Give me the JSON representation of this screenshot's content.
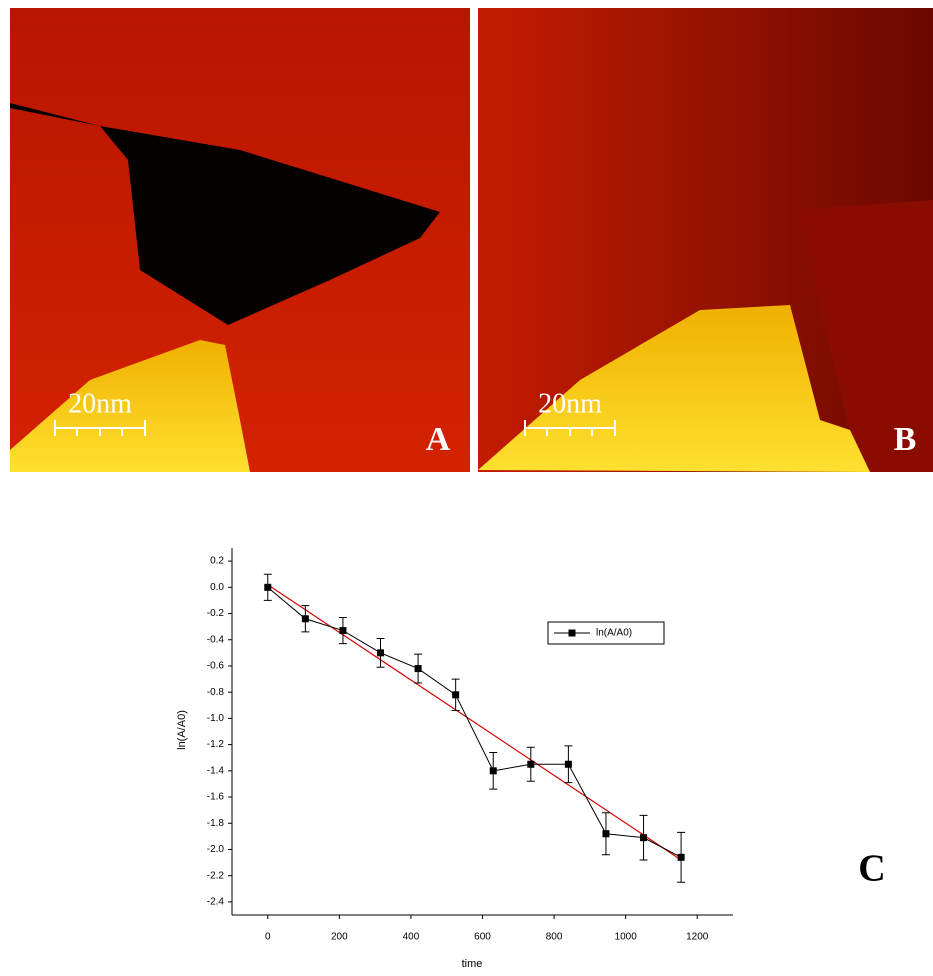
{
  "panels": [
    {
      "label": "A",
      "scale_bar": "20nm"
    },
    {
      "label": "B",
      "scale_bar": "20nm"
    }
  ],
  "chart_label": "C",
  "chart_data": {
    "type": "line",
    "x_label": "time",
    "y_label": "ln(A/A0)",
    "x": [
      0,
      105,
      210,
      315,
      420,
      525,
      630,
      735,
      840,
      945,
      1050,
      1155
    ],
    "series": [
      {
        "name": "ln(A/A0)",
        "color": "#000000",
        "values": [
          0.0,
          -0.24,
          -0.33,
          -0.5,
          -0.62,
          -0.82,
          -1.4,
          -1.35,
          -1.35,
          -1.88,
          -1.91,
          -2.06
        ],
        "errors": [
          0.1,
          0.1,
          0.1,
          0.11,
          0.11,
          0.12,
          0.14,
          0.13,
          0.14,
          0.16,
          0.17,
          0.19
        ]
      }
    ],
    "fit_line": {
      "x": [
        0,
        1155
      ],
      "values": [
        0.02,
        -2.08
      ],
      "color": "#dd0000"
    },
    "xlim": [
      -100,
      1300
    ],
    "xticks": [
      0,
      200,
      400,
      600,
      800,
      1000,
      1200
    ],
    "ylim": [
      -2.5,
      0.3
    ],
    "yticks": [
      0.2,
      {
        "value": 0,
        "label": "0.0"
      },
      -0.2,
      -0.4,
      -0.6,
      -0.8,
      {
        "value": -1,
        "label": "-1.0"
      },
      -1.2,
      -1.4,
      -1.6,
      -1.8,
      {
        "value": -2,
        "label": "-2.0"
      },
      -2.2,
      -2.4
    ],
    "legend": "upper-right"
  }
}
